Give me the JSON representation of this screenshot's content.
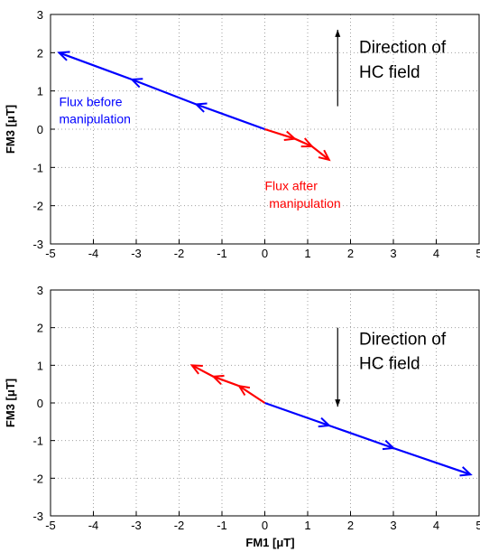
{
  "chart_data": [
    {
      "type": "line",
      "xlabel": "FM1 [μT]",
      "ylabel": "FM3 [μT]",
      "xlim": [
        -5,
        5
      ],
      "ylim": [
        -3,
        3
      ],
      "x_ticks": [
        -5,
        -4,
        -3,
        -2,
        -1,
        0,
        1,
        2,
        3,
        4,
        5
      ],
      "y_ticks": [
        -3,
        -2,
        -1,
        0,
        1,
        2,
        3
      ],
      "grid": true,
      "series": [
        {
          "name": "Flux before manipulation",
          "color": "#0000ff",
          "x": [
            0,
            -1.6,
            -3.1,
            -4.8
          ],
          "y": [
            0,
            0.65,
            1.3,
            2.0
          ]
        },
        {
          "name": "Flux after manipulation",
          "color": "#ff0000",
          "x": [
            0,
            0.7,
            1.1,
            1.5
          ],
          "y": [
            0,
            -0.25,
            -0.45,
            -0.8
          ]
        }
      ],
      "annotations": [
        {
          "text": "Flux before",
          "color": "#0000ff",
          "x": -4.8,
          "y": 0.6
        },
        {
          "text": "manipulation",
          "color": "#0000ff",
          "x": -4.8,
          "y": 0.15
        },
        {
          "text": "Flux after",
          "color": "#ff0000",
          "x": 0.0,
          "y": -1.6
        },
        {
          "text": "manipulation",
          "color": "#ff0000",
          "x": 0.1,
          "y": -2.05
        },
        {
          "text": "Direction of",
          "color": "#000000",
          "x": 2.2,
          "y": 2.0
        },
        {
          "text": "HC field",
          "color": "#000000",
          "x": 2.2,
          "y": 1.35
        }
      ],
      "field_arrow": {
        "x": 1.7,
        "y_from": 0.6,
        "y_to": 2.6,
        "direction": "up"
      }
    },
    {
      "type": "line",
      "xlabel": "FM1 [μT]",
      "ylabel": "FM3 [μT]",
      "xlim": [
        -5,
        5
      ],
      "ylim": [
        -3,
        3
      ],
      "x_ticks": [
        -5,
        -4,
        -3,
        -2,
        -1,
        0,
        1,
        2,
        3,
        4,
        5
      ],
      "y_ticks": [
        -3,
        -2,
        -1,
        0,
        1,
        2,
        3
      ],
      "grid": true,
      "series": [
        {
          "name": "Flux before manipulation",
          "color": "#0000ff",
          "x": [
            0,
            1.5,
            3.0,
            4.8
          ],
          "y": [
            0,
            -0.6,
            -1.2,
            -1.9
          ]
        },
        {
          "name": "Flux after manipulation",
          "color": "#ff0000",
          "x": [
            0,
            -0.6,
            -1.2,
            -1.7
          ],
          "y": [
            0,
            0.45,
            0.7,
            1.0
          ]
        }
      ],
      "annotations": [
        {
          "text": "Direction of",
          "color": "#000000",
          "x": 2.2,
          "y": 1.55
        },
        {
          "text": "HC field",
          "color": "#000000",
          "x": 2.2,
          "y": 0.9
        }
      ],
      "field_arrow": {
        "x": 1.7,
        "y_from": 2.0,
        "y_to": -0.1,
        "direction": "down"
      }
    }
  ]
}
